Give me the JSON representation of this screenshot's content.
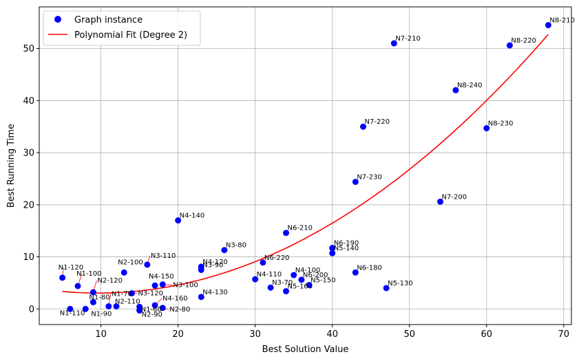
{
  "chart_data": {
    "type": "scatter",
    "xlabel": "Best Solution Value",
    "ylabel": "Best Running Time",
    "xlim": [
      2.0,
      71.0
    ],
    "ylim": [
      -3.0,
      58.0
    ],
    "x_ticks": [
      10,
      20,
      30,
      40,
      50,
      60,
      70
    ],
    "y_ticks": [
      0,
      10,
      20,
      30,
      40,
      50
    ],
    "grid": true,
    "legend_position": "top-left",
    "colors": {
      "points": "#0000ff",
      "fit": "#ff0000",
      "grid": "#b0b0b0",
      "leader": "#ff0000"
    },
    "series": [
      {
        "name": "Graph instance",
        "kind": "scatter",
        "points": [
          {
            "label": "N8-210",
            "x": 68,
            "y": 54.5
          },
          {
            "label": "N7-210",
            "x": 48,
            "y": 51.0
          },
          {
            "label": "N8-220",
            "x": 63,
            "y": 50.6
          },
          {
            "label": "N8-240",
            "x": 56,
            "y": 42.0
          },
          {
            "label": "N7-220",
            "x": 44,
            "y": 35.0
          },
          {
            "label": "N8-230",
            "x": 60,
            "y": 34.7
          },
          {
            "label": "N7-230",
            "x": 43,
            "y": 24.4
          },
          {
            "label": "N7-200",
            "x": 54,
            "y": 20.6
          },
          {
            "label": "N4-140",
            "x": 20,
            "y": 17.0
          },
          {
            "label": "N6-210",
            "x": 34,
            "y": 14.6
          },
          {
            "label": "N6-190",
            "x": 40,
            "y": 11.7
          },
          {
            "label": "N3-80",
            "x": 26,
            "y": 11.3
          },
          {
            "label": "N5-140",
            "x": 40,
            "y": 10.7
          },
          {
            "label": "N6-220",
            "x": 31,
            "y": 8.9
          },
          {
            "label": "N3-110",
            "x": 16,
            "y": 8.5
          },
          {
            "label": "N4-120",
            "x": 23,
            "y": 8.1
          },
          {
            "label": "N3-90",
            "x": 23,
            "y": 7.5
          },
          {
            "label": "N2-100",
            "x": 13,
            "y": 7.0
          },
          {
            "label": "N6-180",
            "x": 43,
            "y": 7.0
          },
          {
            "label": "N4-100",
            "x": 35,
            "y": 6.5
          },
          {
            "label": "N1-120",
            "x": 5,
            "y": 6.0
          },
          {
            "label": "N4-110",
            "x": 30,
            "y": 5.7
          },
          {
            "label": "N6-200",
            "x": 36,
            "y": 5.6
          },
          {
            "label": "N3-100",
            "x": 18,
            "y": 4.7
          },
          {
            "label": "N5-150",
            "x": 37,
            "y": 4.6
          },
          {
            "label": "N4-150",
            "x": 17,
            "y": 4.5
          },
          {
            "label": "N1-100",
            "x": 7,
            "y": 4.4
          },
          {
            "label": "N3-70",
            "x": 32,
            "y": 4.1
          },
          {
            "label": "N5-130",
            "x": 47,
            "y": 4.0
          },
          {
            "label": "N5-160",
            "x": 34,
            "y": 3.4
          },
          {
            "label": "N2-120",
            "x": 9,
            "y": 3.2
          },
          {
            "label": "N3-120",
            "x": 14,
            "y": 3.0
          },
          {
            "label": "N4-130",
            "x": 23,
            "y": 2.3
          },
          {
            "label": "N1-80",
            "x": 9,
            "y": 1.3
          },
          {
            "label": "N4-160",
            "x": 17,
            "y": 0.7
          },
          {
            "label": "N1-70",
            "x": 11,
            "y": 0.5
          },
          {
            "label": "N2-110",
            "x": 12,
            "y": 0.5
          },
          {
            "label": "N1-60",
            "x": 15,
            "y": 0.4
          },
          {
            "label": "N2-80",
            "x": 18,
            "y": 0.2
          },
          {
            "label": "N1-110",
            "x": 6,
            "y": 0.0
          },
          {
            "label": "N1-90",
            "x": 8,
            "y": 0.0
          },
          {
            "label": "N2-90",
            "x": 15,
            "y": -0.3
          }
        ]
      },
      {
        "name": "Polynomial Fit (Degree 2)",
        "kind": "line",
        "coefficients": [
          0.0146,
          -0.2824,
          4.41
        ],
        "x_range": [
          5,
          68
        ]
      }
    ]
  }
}
